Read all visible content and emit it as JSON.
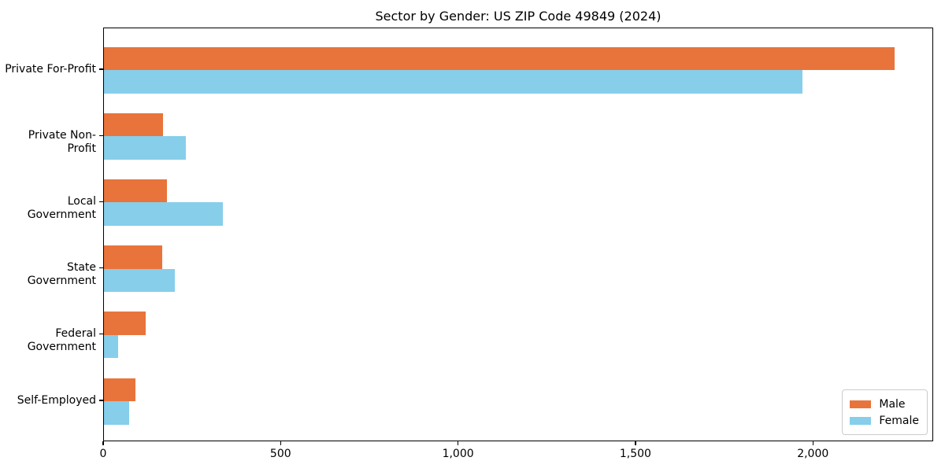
{
  "chart_data": {
    "type": "bar",
    "orientation": "horizontal",
    "title": "Sector by Gender: US ZIP Code 49849 (2024)",
    "categories": [
      "Private For-Profit",
      "Private Non-Profit",
      "Local Government",
      "State Government",
      "Federal Government",
      "Self-Employed"
    ],
    "series": [
      {
        "name": "Male",
        "color": "#e8743b",
        "values": [
          2228,
          166,
          177,
          164,
          118,
          88
        ]
      },
      {
        "name": "Female",
        "color": "#87ceeb",
        "values": [
          1968,
          231,
          334,
          200,
          41,
          72
        ]
      }
    ],
    "xlabel": "",
    "ylabel": "",
    "xlim": [
      0,
      2339
    ],
    "x_ticks": [
      {
        "value": 0,
        "label": "0"
      },
      {
        "value": 500,
        "label": "500"
      },
      {
        "value": 1000,
        "label": "1,000"
      },
      {
        "value": 1500,
        "label": "1,500"
      },
      {
        "value": 2000,
        "label": "2,000"
      }
    ],
    "grid": false,
    "legend": {
      "position": "lower right",
      "entries": [
        "Male",
        "Female"
      ]
    }
  },
  "colors": {
    "male": "#e8743b",
    "female": "#87ceeb",
    "axis": "#000000",
    "background": "#ffffff",
    "legend_border": "#cccccc"
  }
}
